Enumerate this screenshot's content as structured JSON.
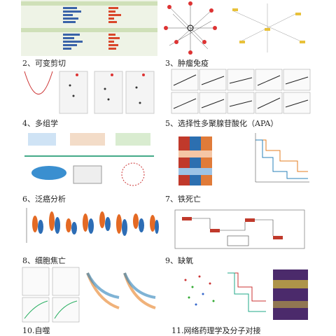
{
  "captions": [
    "2、可变剪切",
    "3、肿瘤免疫",
    "4、多组学",
    "5、选择性多聚腺苷酸化（APA）",
    "6、泛癌分析",
    "7、铁死亡",
    "8、细胞焦亡",
    "9、缺氧",
    "10.自噬",
    "11.网络药理学及分子对接"
  ]
}
